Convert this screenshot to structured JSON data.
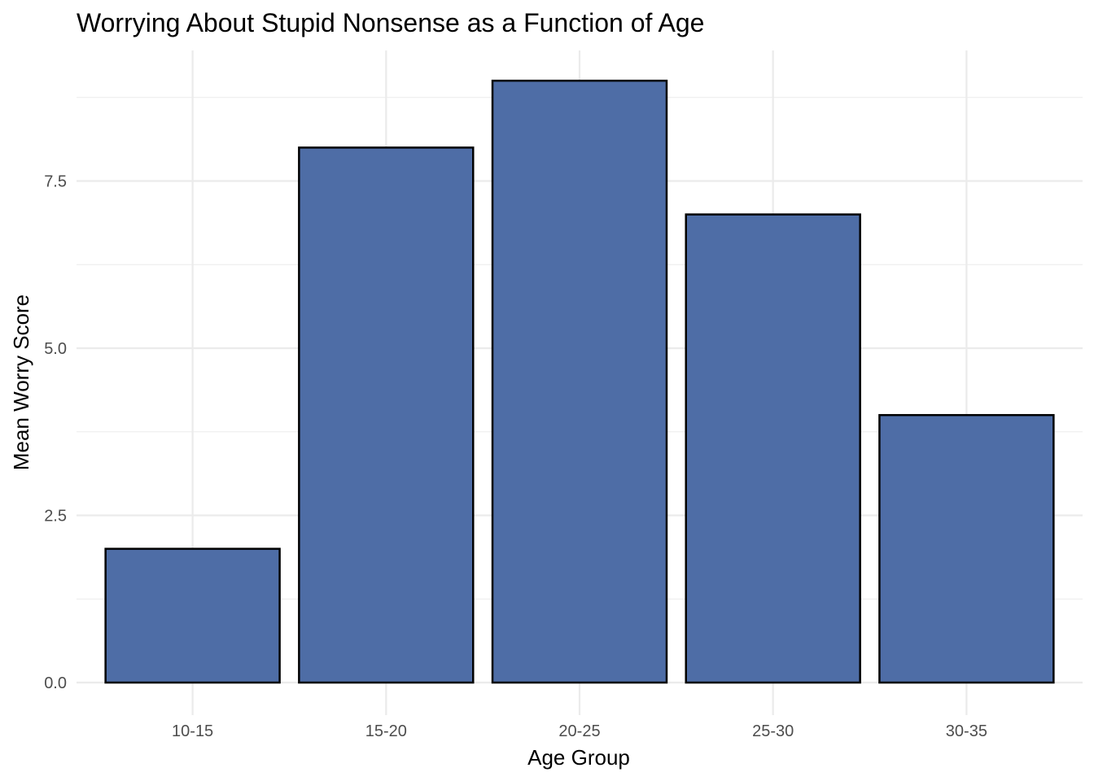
{
  "chart_data": {
    "type": "bar",
    "title": "Worrying About Stupid Nonsense as a Function of Age",
    "xlabel": "Age Group",
    "ylabel": "Mean Worry Score",
    "categories": [
      "10-15",
      "15-20",
      "20-25",
      "25-30",
      "30-35"
    ],
    "values": [
      2,
      8,
      9,
      7,
      4
    ],
    "ylim": [
      0,
      9
    ],
    "yticks": [
      "0.0",
      "2.5",
      "5.0",
      "7.5"
    ],
    "ytick_values": [
      0,
      2.5,
      5,
      7.5
    ],
    "y_minor_gridlines": [
      1.25,
      3.75,
      6.25,
      8.75
    ],
    "grid": true,
    "legend": "none",
    "bar_color": "#4e6da6",
    "bar_outline_color": "#000000"
  }
}
